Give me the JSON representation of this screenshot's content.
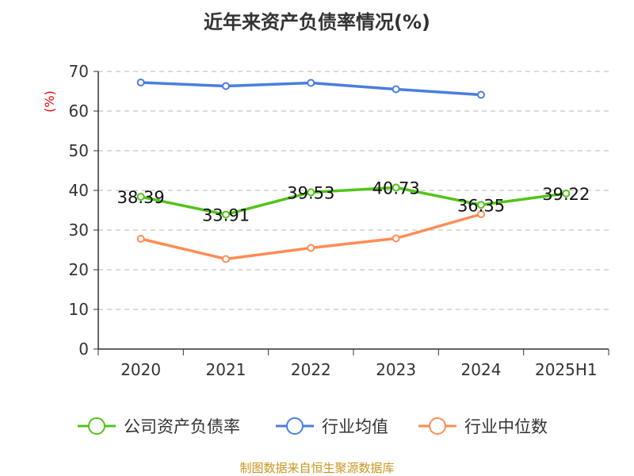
{
  "chart_data": {
    "type": "line",
    "title": "近年来资产负债率情况(%)",
    "ylabel": "(%)",
    "xlabel": "",
    "categories": [
      "2020",
      "2021",
      "2022",
      "2023",
      "2024",
      "2025H1"
    ],
    "ylim": [
      0,
      70
    ],
    "yticks": [
      0,
      10,
      20,
      30,
      40,
      50,
      60,
      70
    ],
    "grid": true,
    "legend_position": "bottom",
    "series": [
      {
        "name": "公司资产负债率",
        "color": "#52c41a",
        "values": [
          38.39,
          33.91,
          39.53,
          40.73,
          36.35,
          39.22
        ],
        "labels": [
          "38.39",
          "33.91",
          "39.53",
          "40.73",
          "36.35",
          "39.22"
        ]
      },
      {
        "name": "行业均值",
        "color": "#4a7ee0",
        "values": [
          67.2,
          66.3,
          67.1,
          65.5,
          64.1,
          null
        ]
      },
      {
        "name": "行业中位数",
        "color": "#ff8c55",
        "values": [
          27.8,
          22.7,
          25.5,
          27.9,
          34.0,
          null
        ]
      }
    ]
  },
  "source": "制图数据来自恒生聚源数据库"
}
